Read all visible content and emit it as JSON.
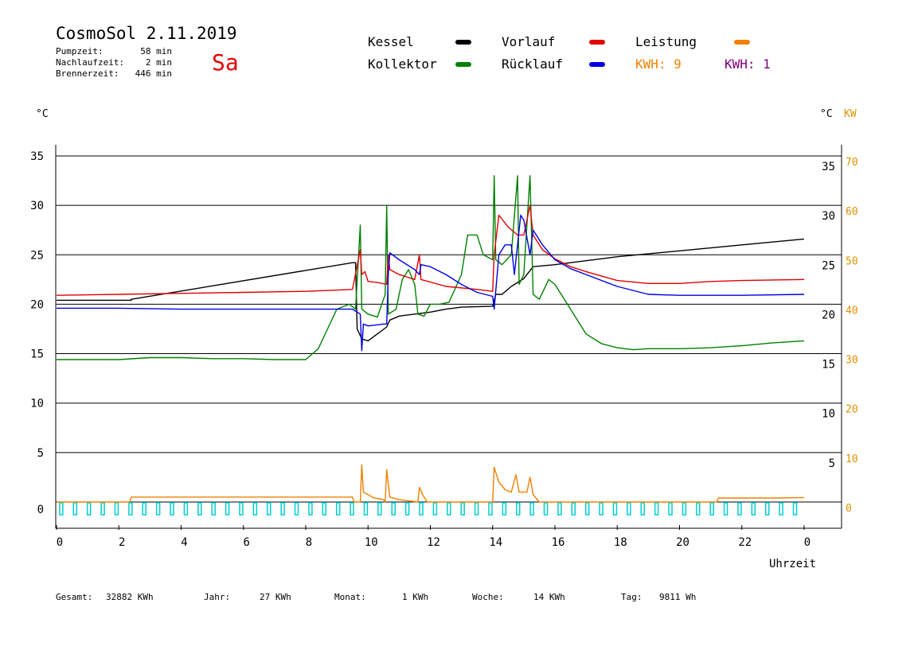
{
  "header": {
    "title": "CosmoSol 2.11.2019",
    "weekday": "Sa",
    "stats": [
      {
        "label": "Pumpzeit:",
        "value": "58 min"
      },
      {
        "label": "Nachlaufzeit:",
        "value": "2 min"
      },
      {
        "label": "Brennerzeit:",
        "value": "446 min"
      }
    ]
  },
  "legend": {
    "kessel": "Kessel",
    "kollektor": "Kollektor",
    "vorlauf": "Vorlauf",
    "ruecklauf": "Rücklauf",
    "leistung": "Leistung",
    "kwh1": "KWH: 9",
    "kwh2": "KWH: 1"
  },
  "axes": {
    "left_unit": "°C",
    "right_unit_c": "°C",
    "right_unit_kw": "KW",
    "x_label": "Uhrzeit"
  },
  "footer": [
    {
      "label": "Gesamt:",
      "value": "32882 KWh"
    },
    {
      "label": "Jahr:",
      "value": "27 KWh"
    },
    {
      "label": "Monat:",
      "value": "1 KWh"
    },
    {
      "label": "Woche:",
      "value": "14 KWh"
    },
    {
      "label": "Tag:",
      "value": "9811 Wh"
    }
  ],
  "colors": {
    "kessel": "#000000",
    "kollektor": "#008000",
    "vorlauf": "#e00000",
    "ruecklauf": "#0000e0",
    "leistung": "#f08000",
    "kwh2": "#800080",
    "pump": "#00d0d0"
  },
  "chart_data": {
    "type": "line",
    "xlabel": "Uhrzeit",
    "xlim": [
      0,
      24
    ],
    "x_ticks": [
      "0",
      "2",
      "4",
      "6",
      "8",
      "10",
      "12",
      "14",
      "16",
      "18",
      "20",
      "22",
      "0"
    ],
    "ylim_left": [
      0,
      35
    ],
    "y_ticks_left": [
      "0",
      "5",
      "10",
      "15",
      "20",
      "25",
      "30",
      "35"
    ],
    "y_ticks_right_c": [
      "5",
      "10",
      "15",
      "20",
      "25",
      "30",
      "35"
    ],
    "y_ticks_right_kw": [
      "0",
      "10",
      "20",
      "30",
      "40",
      "50",
      "60",
      "70"
    ],
    "grid": "horizontal",
    "series": [
      {
        "name": "Kessel",
        "points": [
          [
            0,
            20.4
          ],
          [
            2.4,
            20.4
          ],
          [
            2.4,
            20.5
          ],
          [
            9.5,
            24.2
          ],
          [
            9.6,
            24.2
          ],
          [
            9.65,
            17.5
          ],
          [
            9.8,
            16.5
          ],
          [
            10.0,
            16.3
          ],
          [
            10.3,
            17.0
          ],
          [
            10.6,
            17.7
          ],
          [
            10.7,
            18.4
          ],
          [
            11.0,
            18.8
          ],
          [
            11.5,
            19.0
          ],
          [
            12.0,
            19.2
          ],
          [
            12.5,
            19.5
          ],
          [
            13.0,
            19.7
          ],
          [
            14.0,
            19.8
          ],
          [
            14.1,
            21.0
          ],
          [
            14.3,
            21.0
          ],
          [
            14.6,
            21.8
          ],
          [
            14.8,
            22.2
          ],
          [
            15.0,
            22.6
          ],
          [
            15.3,
            23.8
          ],
          [
            16.0,
            24.0
          ],
          [
            17.0,
            24.4
          ],
          [
            18.0,
            24.8
          ],
          [
            20.0,
            25.4
          ],
          [
            22.0,
            26.0
          ],
          [
            24.0,
            26.6
          ]
        ]
      },
      {
        "name": "Kollektor",
        "points": [
          [
            0,
            14.4
          ],
          [
            2,
            14.4
          ],
          [
            3,
            14.6
          ],
          [
            4,
            14.6
          ],
          [
            5,
            14.5
          ],
          [
            6,
            14.5
          ],
          [
            7,
            14.4
          ],
          [
            8.0,
            14.4
          ],
          [
            8.4,
            15.5
          ],
          [
            8.7,
            17.5
          ],
          [
            9.0,
            19.5
          ],
          [
            9.4,
            20.0
          ],
          [
            9.6,
            19.5
          ],
          [
            9.75,
            28.0
          ],
          [
            9.8,
            19.5
          ],
          [
            10.0,
            19.0
          ],
          [
            10.3,
            18.7
          ],
          [
            10.55,
            21.0
          ],
          [
            10.6,
            30.0
          ],
          [
            10.65,
            19.0
          ],
          [
            10.9,
            19.5
          ],
          [
            11.1,
            22.5
          ],
          [
            11.3,
            23.5
          ],
          [
            11.5,
            22.0
          ],
          [
            11.6,
            19.0
          ],
          [
            11.8,
            18.8
          ],
          [
            12.0,
            20.0
          ],
          [
            12.3,
            20.0
          ],
          [
            12.6,
            20.2
          ],
          [
            13.0,
            23.0
          ],
          [
            13.2,
            27.0
          ],
          [
            13.5,
            27.0
          ],
          [
            13.7,
            25.0
          ],
          [
            14.0,
            24.5
          ],
          [
            14.05,
            33.0
          ],
          [
            14.1,
            24.5
          ],
          [
            14.3,
            24.0
          ],
          [
            14.6,
            25.0
          ],
          [
            14.8,
            33.0
          ],
          [
            14.85,
            22.0
          ],
          [
            15.0,
            23.0
          ],
          [
            15.2,
            33.0
          ],
          [
            15.3,
            21.0
          ],
          [
            15.5,
            20.5
          ],
          [
            15.8,
            22.5
          ],
          [
            16.0,
            22.0
          ],
          [
            16.5,
            19.5
          ],
          [
            17.0,
            17.0
          ],
          [
            17.5,
            16.0
          ],
          [
            18.0,
            15.6
          ],
          [
            18.5,
            15.4
          ],
          [
            19.0,
            15.5
          ],
          [
            20.0,
            15.5
          ],
          [
            21.0,
            15.6
          ],
          [
            22.0,
            15.8
          ],
          [
            23.0,
            16.1
          ],
          [
            24.0,
            16.3
          ]
        ]
      },
      {
        "name": "Vorlauf",
        "points": [
          [
            0,
            20.9
          ],
          [
            2,
            21.0
          ],
          [
            4,
            21.1
          ],
          [
            6,
            21.2
          ],
          [
            8,
            21.3
          ],
          [
            9.5,
            21.5
          ],
          [
            9.75,
            25.5
          ],
          [
            9.8,
            23.0
          ],
          [
            9.9,
            23.3
          ],
          [
            10.0,
            22.3
          ],
          [
            10.3,
            22.2
          ],
          [
            10.6,
            22.0
          ],
          [
            10.65,
            25.0
          ],
          [
            10.7,
            23.5
          ],
          [
            11.0,
            23.0
          ],
          [
            11.5,
            22.5
          ],
          [
            11.65,
            25.0
          ],
          [
            11.7,
            22.5
          ],
          [
            12.5,
            21.8
          ],
          [
            13.5,
            21.5
          ],
          [
            14.0,
            21.3
          ],
          [
            14.05,
            25.0
          ],
          [
            14.2,
            29.0
          ],
          [
            14.5,
            27.8
          ],
          [
            14.8,
            27.0
          ],
          [
            15.0,
            27.0
          ],
          [
            15.2,
            30.0
          ],
          [
            15.3,
            27.0
          ],
          [
            15.6,
            25.5
          ],
          [
            16.0,
            24.6
          ],
          [
            16.5,
            23.8
          ],
          [
            17.0,
            23.3
          ],
          [
            18.0,
            22.4
          ],
          [
            19.0,
            22.1
          ],
          [
            20.0,
            22.1
          ],
          [
            21.0,
            22.3
          ],
          [
            22.0,
            22.4
          ],
          [
            24.0,
            22.5
          ]
        ]
      },
      {
        "name": "Rücklauf",
        "points": [
          [
            0,
            19.6
          ],
          [
            2,
            19.6
          ],
          [
            4,
            19.5
          ],
          [
            6,
            19.5
          ],
          [
            8,
            19.5
          ],
          [
            9.5,
            19.5
          ],
          [
            9.75,
            19.0
          ],
          [
            9.8,
            15.3
          ],
          [
            9.85,
            18.0
          ],
          [
            10.0,
            17.8
          ],
          [
            10.5,
            18.0
          ],
          [
            10.6,
            18.0
          ],
          [
            10.65,
            23.0
          ],
          [
            10.7,
            25.2
          ],
          [
            11.0,
            24.5
          ],
          [
            11.5,
            23.5
          ],
          [
            11.65,
            23.0
          ],
          [
            11.7,
            24.0
          ],
          [
            12.0,
            23.8
          ],
          [
            12.5,
            23.0
          ],
          [
            13.0,
            22.0
          ],
          [
            13.5,
            21.2
          ],
          [
            14.0,
            20.8
          ],
          [
            14.05,
            19.5
          ],
          [
            14.2,
            25.0
          ],
          [
            14.4,
            26.0
          ],
          [
            14.6,
            26.0
          ],
          [
            14.7,
            23.0
          ],
          [
            14.9,
            29.0
          ],
          [
            15.0,
            28.5
          ],
          [
            15.2,
            25.0
          ],
          [
            15.3,
            27.5
          ],
          [
            15.6,
            26.0
          ],
          [
            16.0,
            24.5
          ],
          [
            16.5,
            23.6
          ],
          [
            17.0,
            23.0
          ],
          [
            18.0,
            21.8
          ],
          [
            19.0,
            21.0
          ],
          [
            20.0,
            20.9
          ],
          [
            22.0,
            20.9
          ],
          [
            24.0,
            21.0
          ]
        ]
      },
      {
        "name": "Leistung",
        "axis": "right_kw",
        "points": [
          [
            0,
            0
          ],
          [
            2.35,
            0
          ],
          [
            2.4,
            1.0
          ],
          [
            9.5,
            1.0
          ],
          [
            9.55,
            0
          ],
          [
            9.75,
            0
          ],
          [
            9.8,
            7.5
          ],
          [
            9.85,
            2.0
          ],
          [
            10.0,
            1.5
          ],
          [
            10.2,
            0.8
          ],
          [
            10.5,
            0.5
          ],
          [
            10.55,
            0
          ],
          [
            10.6,
            6.5
          ],
          [
            10.7,
            1.0
          ],
          [
            11.0,
            0.5
          ],
          [
            11.6,
            0
          ],
          [
            11.65,
            3.0
          ],
          [
            11.75,
            1.5
          ],
          [
            11.9,
            0
          ],
          [
            14.0,
            0
          ],
          [
            14.05,
            7.0
          ],
          [
            14.2,
            4.0
          ],
          [
            14.4,
            2.5
          ],
          [
            14.6,
            2.0
          ],
          [
            14.75,
            5.5
          ],
          [
            14.85,
            2.0
          ],
          [
            15.1,
            2.0
          ],
          [
            15.2,
            5.0
          ],
          [
            15.3,
            1.5
          ],
          [
            15.5,
            0
          ],
          [
            21.2,
            0
          ],
          [
            21.25,
            0.8
          ],
          [
            23.0,
            0.8
          ],
          [
            24.0,
            0.9
          ]
        ]
      }
    ]
  }
}
